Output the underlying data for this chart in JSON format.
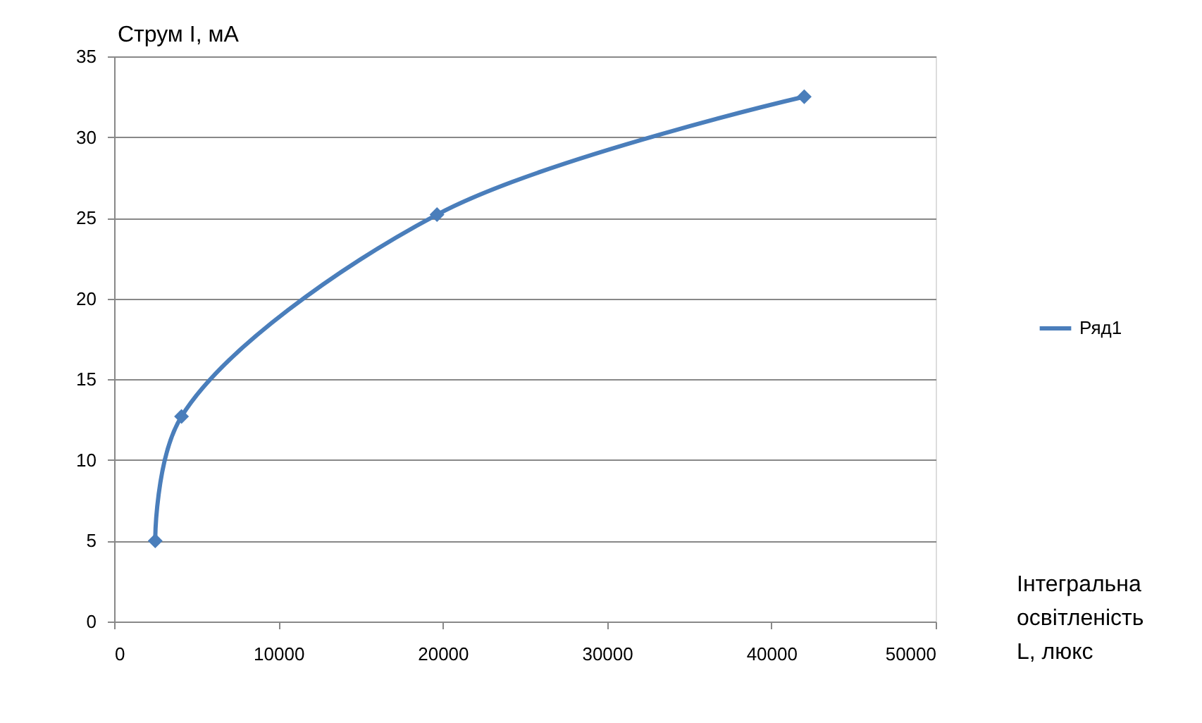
{
  "chart_data": {
    "type": "line",
    "xlabel": "Інтегральна освітленість L, люкс",
    "ylabel": "Струм I, мА",
    "x": [
      2500,
      4100,
      19650,
      42000
    ],
    "series": [
      {
        "name": "Ряд1",
        "color": "#4a7ebb",
        "values": [
          5.0,
          12.7,
          25.2,
          32.5
        ]
      }
    ],
    "xlim": [
      0,
      50000
    ],
    "xticks": [
      0,
      10000,
      20000,
      30000,
      40000,
      50000
    ],
    "ylim": [
      0,
      35
    ],
    "yticks": [
      0,
      5,
      10,
      15,
      20,
      25,
      30,
      35
    ],
    "grid": "y",
    "legend": "right",
    "marker": "diamond",
    "line_style": "solid"
  }
}
